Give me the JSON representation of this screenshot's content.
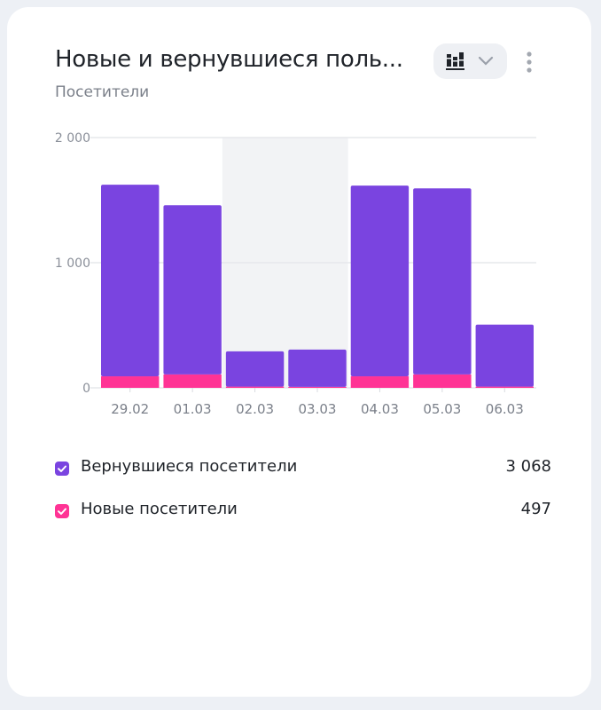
{
  "header": {
    "title": "Новые и вернувшиеся поль...",
    "subtitle": "Посетители",
    "chart_type_icon": "stacked-bars-icon",
    "dropdown_icon": "chevron-down-icon",
    "menu_icon": "more-vertical-icon"
  },
  "colors": {
    "returning": "#7a44e0",
    "new": "#ff3395",
    "weekend_band": "#f2f3f5",
    "grid": "#e6e8ec"
  },
  "chart_data": {
    "type": "bar",
    "stacked": true,
    "categories": [
      "29.02",
      "01.03",
      "02.03",
      "03.03",
      "04.03",
      "05.03",
      "06.03"
    ],
    "series": [
      {
        "name": "Новые посетители",
        "values": [
          92,
          107,
          10,
          8,
          92,
          107,
          10
        ]
      },
      {
        "name": "Вернувшиеся посетители",
        "values": [
          1531,
          1352,
          282,
          298,
          1524,
          1487,
          495
        ]
      }
    ],
    "ylim": [
      0,
      2000
    ],
    "yticks": [
      "0",
      "1 000",
      "2 000"
    ],
    "ytick_values": [
      0,
      1000,
      2000
    ],
    "highlighted_categories": [
      "02.03",
      "03.03"
    ],
    "grid": true,
    "legend_position": "bottom"
  },
  "legend": [
    {
      "label": "Вернувшиеся посетители",
      "value": "3 068",
      "color": "#7a44e0"
    },
    {
      "label": "Новые посетители",
      "value": "497",
      "color": "#ff3395"
    }
  ]
}
